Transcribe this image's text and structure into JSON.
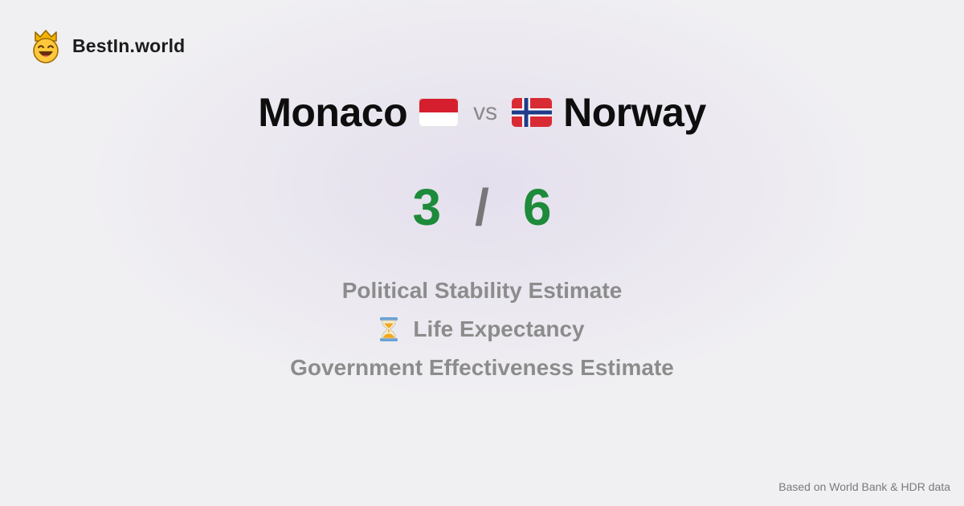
{
  "brand": {
    "name": "BestIn.world",
    "icon": "crown-smiley-icon"
  },
  "comparison": {
    "country_a": {
      "name": "Monaco",
      "flag": "monaco-flag-icon"
    },
    "vs_label": "vs",
    "country_b": {
      "name": "Norway",
      "flag": "norway-flag-icon"
    }
  },
  "score": {
    "a": "3",
    "separator": "/",
    "b": "6"
  },
  "metrics": [
    {
      "label": "Political Stability Estimate",
      "icon": ""
    },
    {
      "label": "Life Expectancy",
      "icon": "hourglass-icon"
    },
    {
      "label": "Government Effectiveness Estimate",
      "icon": ""
    }
  ],
  "footer": {
    "text": "Based on World Bank & HDR data"
  },
  "colors": {
    "score_green": "#1d8b3a",
    "metric_gray": "#8c8c8c",
    "background": "#f0eff2"
  }
}
